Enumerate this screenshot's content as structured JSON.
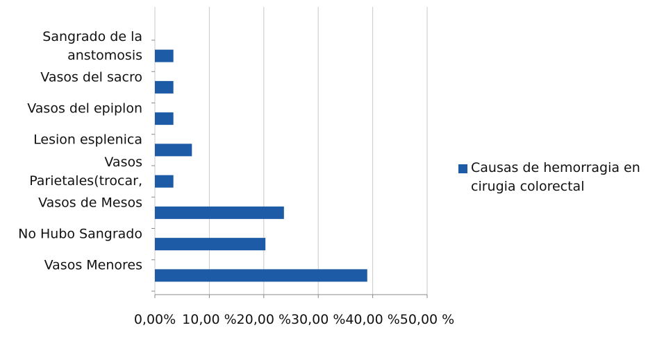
{
  "chart_data": {
    "type": "bar",
    "orientation": "horizontal",
    "categories": [
      "Sangrado de la anstomosis",
      "Vasos del sacro",
      "Vasos del epiplon",
      "Lesion esplenica",
      "Vasos Parietales(trocar,",
      "Vasos de Mesos",
      "No Hubo Sangrado",
      "Vasos Menores"
    ],
    "series": [
      {
        "name": "Causas de hemorragia en cirugia colorectal",
        "color": "#1e5ba6",
        "values": [
          3.4,
          3.4,
          3.4,
          6.8,
          3.4,
          23.7,
          20.3,
          39.0
        ]
      }
    ],
    "xlim": [
      0,
      50
    ],
    "xticks": [
      {
        "value": 0,
        "label": "0,00%"
      },
      {
        "value": 10,
        "label": "10,00 %"
      },
      {
        "value": 20,
        "label": "20,00 %"
      },
      {
        "value": 30,
        "label": "30,00 %"
      },
      {
        "value": 40,
        "label": "40,00 %"
      },
      {
        "value": 50,
        "label": "50,00 %"
      }
    ],
    "grid": true,
    "legend": "right"
  }
}
